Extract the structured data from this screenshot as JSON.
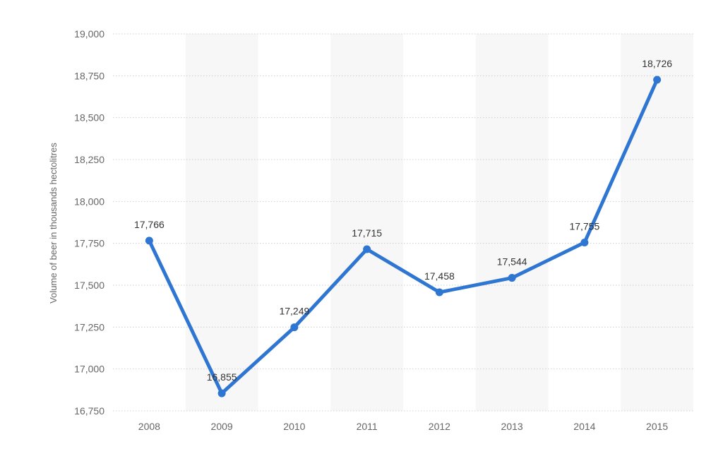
{
  "chart_data": {
    "type": "line",
    "title": "",
    "xlabel": "",
    "ylabel": "Volume of beer in thousands hectolitres",
    "categories": [
      "2008",
      "2009",
      "2010",
      "2011",
      "2012",
      "2013",
      "2014",
      "2015"
    ],
    "series": [
      {
        "values": [
          17766,
          16855,
          17249,
          17715,
          17458,
          17544,
          17755,
          18726
        ],
        "data_labels": [
          "17,766",
          "16,855",
          "17,249",
          "17,715",
          "17,458",
          "17,544",
          "17,755",
          "18,726"
        ]
      }
    ],
    "ylim": [
      16750,
      19000
    ],
    "y_ticks": [
      16750,
      17000,
      17250,
      17500,
      17750,
      18000,
      18250,
      18500,
      18750,
      19000
    ],
    "y_tick_labels": [
      "16,750",
      "17,000",
      "17,250",
      "17,500",
      "17,750",
      "18,000",
      "18,250",
      "18,500",
      "18,750",
      "19,000"
    ],
    "grid": true,
    "legend": "none",
    "alternating_column_bands": true,
    "colors": {
      "line": "#2f76d2",
      "band": "#f7f7f7",
      "grid": "#cfcfcf"
    }
  }
}
